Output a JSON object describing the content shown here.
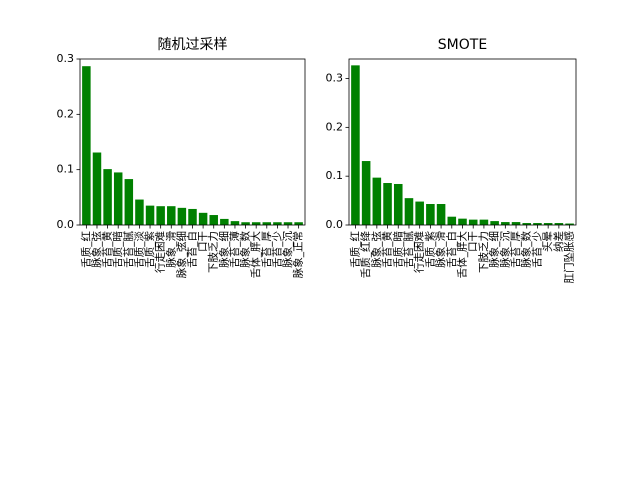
{
  "colors": {
    "bar": "#008000",
    "axis": "#000000",
    "background": "#ffffff"
  },
  "chart_data": [
    {
      "type": "bar",
      "title": "随机过采样",
      "xlabel": "",
      "ylabel": "",
      "ylim": [
        0,
        0.3
      ],
      "yticks": [
        "0.0",
        "0.1",
        "0.2",
        "0.3"
      ],
      "grid": false,
      "categories": [
        "舌质_红",
        "脉象_弦",
        "舌苔_黄",
        "舌质_暗",
        "舌苔_腻",
        "舌质_淡",
        "舌质_紫",
        "行走困难",
        "脉象_滑",
        "脉象_弦细",
        "舌苔_白",
        "口干",
        "下肢乏力",
        "脉象_细",
        "舌苔_薄",
        "脉象_数",
        "舌体_胖大",
        "舌苔_厚",
        "舌苔_少",
        "脉象_沉",
        "脉象_正常"
      ],
      "values": [
        0.287,
        0.131,
        0.101,
        0.095,
        0.083,
        0.046,
        0.035,
        0.034,
        0.034,
        0.031,
        0.029,
        0.022,
        0.018,
        0.011,
        0.007,
        0.005,
        0.005,
        0.005,
        0.005,
        0.005,
        0.005
      ]
    },
    {
      "type": "bar",
      "title": "SMOTE",
      "xlabel": "",
      "ylabel": "",
      "ylim": [
        0,
        0.34
      ],
      "yticks": [
        "0.0",
        "0.1",
        "0.2",
        "0.3"
      ],
      "grid": false,
      "categories": [
        "舌质_红",
        "舌质_红绛",
        "脉象_弦",
        "舌苔_黄",
        "舌质_暗",
        "舌苔_腻",
        "行走困难",
        "舌质_紫",
        "脉象_滑",
        "舌苔_白",
        "舌体_胖大",
        "口干",
        "下肢乏力",
        "脉象_细",
        "脉象_沉",
        "舌苔_厚",
        "脉象_数",
        "舌苔_少",
        "头晕",
        "纳差",
        "肛门坠胀感"
      ],
      "values": [
        0.327,
        0.131,
        0.097,
        0.086,
        0.084,
        0.055,
        0.048,
        0.043,
        0.043,
        0.017,
        0.013,
        0.011,
        0.011,
        0.008,
        0.006,
        0.006,
        0.004,
        0.004,
        0.004,
        0.004,
        0.003
      ]
    }
  ]
}
